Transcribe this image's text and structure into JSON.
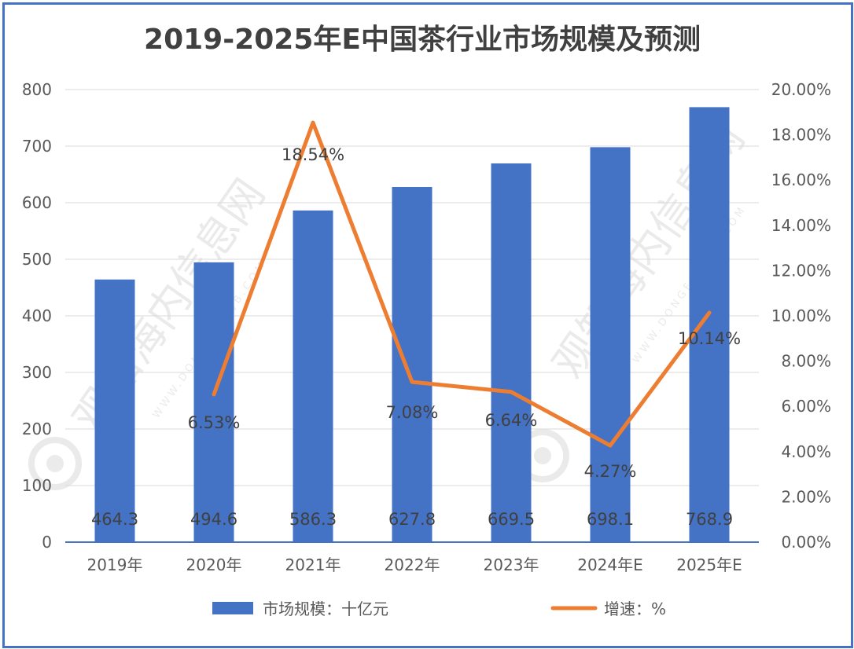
{
  "chart_data": {
    "type": "bar",
    "title": "2019-2025年E中国茶行业市场规模及预测",
    "categories": [
      "2019年",
      "2020年",
      "2021年",
      "2022年",
      "2023年",
      "2024年E",
      "2025年E"
    ],
    "series": [
      {
        "name": "市场规模：十亿元",
        "type": "bar",
        "axis": "left",
        "color": "#4472C4",
        "values": [
          464.3,
          494.6,
          586.3,
          627.8,
          669.5,
          698.1,
          768.9
        ],
        "labels": [
          "464.3",
          "494.6",
          "586.3",
          "627.8",
          "669.5",
          "698.1",
          "768.9"
        ]
      },
      {
        "name": "增速：%",
        "type": "line",
        "axis": "right",
        "color": "#ED7D31",
        "values": [
          null,
          6.53,
          18.54,
          7.08,
          6.64,
          4.27,
          10.14
        ],
        "labels": [
          "",
          "6.53%",
          "18.54%",
          "7.08%",
          "6.64%",
          "4.27%",
          "10.14%"
        ]
      }
    ],
    "y_left": {
      "min": 0,
      "max": 800,
      "step": 100,
      "ticks": [
        "0",
        "100",
        "200",
        "300",
        "400",
        "500",
        "600",
        "700",
        "800"
      ]
    },
    "y_right": {
      "min": 0,
      "max": 20,
      "step": 2,
      "ticks": [
        "0.00%",
        "2.00%",
        "4.00%",
        "6.00%",
        "8.00%",
        "10.00%",
        "12.00%",
        "14.00%",
        "16.00%",
        "18.00%",
        "20.00%"
      ]
    },
    "grid": true,
    "legend_position": "bottom"
  },
  "watermark": {
    "text": "观知海内信息网",
    "subtext": "WWW.DONGFANGQB.COM"
  }
}
